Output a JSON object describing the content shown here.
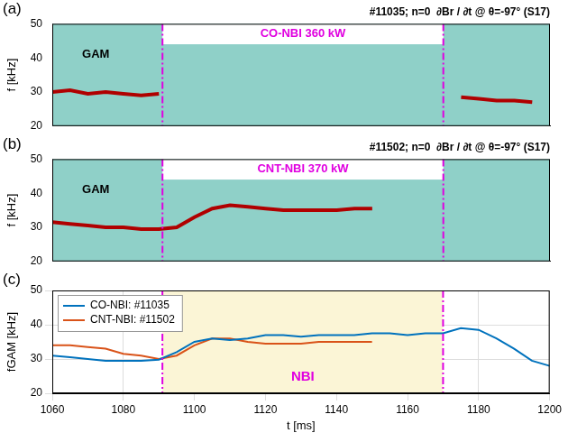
{
  "chart_data": [
    {
      "type": "line",
      "panel": "(a)",
      "title": "#11035; n=0  ∂Br / ∂t @ θ=-97° (S17)",
      "y_label": "f [kHz]",
      "band_label": "GAM",
      "nbi_label": "CO-NBI 360 kW",
      "vlines": [
        1091,
        1170
      ],
      "x": [
        1060,
        1065,
        1070,
        1075,
        1080,
        1085,
        1090,
        1095,
        1100,
        1105,
        1110,
        1115,
        1120,
        1125,
        1130,
        1135,
        1140,
        1145,
        1150,
        1155,
        1160,
        1165,
        1170,
        1175,
        1180,
        1185,
        1190,
        1195,
        1200
      ],
      "values": [
        30,
        30.5,
        29.5,
        30,
        29.5,
        29,
        29.5,
        null,
        null,
        null,
        null,
        null,
        null,
        null,
        null,
        null,
        null,
        null,
        null,
        null,
        null,
        null,
        null,
        28.5,
        28,
        27.5,
        27.5,
        27,
        null
      ],
      "color": "#b00000",
      "xlim": [
        1060,
        1200
      ],
      "ylim": [
        20,
        50
      ],
      "yticks": [
        20,
        30,
        40,
        50
      ],
      "grid": false,
      "tick_labels": "y"
    },
    {
      "type": "line",
      "panel": "(b)",
      "title": "#11502; n=0  ∂Br / ∂t @ θ=-97° (S17)",
      "y_label": "f [kHz]",
      "band_label": "GAM",
      "nbi_label": "CNT-NBI 370 kW",
      "vlines": [
        1091,
        1170
      ],
      "x": [
        1060,
        1065,
        1070,
        1075,
        1080,
        1085,
        1090,
        1095,
        1100,
        1105,
        1110,
        1115,
        1120,
        1125,
        1130,
        1135,
        1140,
        1145,
        1150,
        1155,
        1160,
        1165,
        1170,
        1175,
        1180,
        1185,
        1190,
        1195,
        1200
      ],
      "values": [
        31.5,
        31,
        30.5,
        30,
        30,
        29.5,
        29.5,
        30,
        33,
        35.5,
        36.5,
        36,
        35.5,
        35,
        35,
        35,
        35,
        35.5,
        35.5,
        null,
        null,
        null,
        null,
        null,
        null,
        null,
        null,
        null,
        null
      ],
      "color": "#b00000",
      "xlim": [
        1060,
        1200
      ],
      "ylim": [
        20,
        50
      ],
      "yticks": [
        20,
        30,
        40,
        50
      ],
      "grid": false,
      "tick_labels": "y"
    },
    {
      "type": "line",
      "panel": "(c)",
      "x_label": "t [ms]",
      "y_label": "fGAM [kHz]",
      "shade_label": "NBI",
      "vlines": [
        1091,
        1170
      ],
      "x": [
        1060,
        1065,
        1070,
        1075,
        1080,
        1085,
        1090,
        1095,
        1100,
        1105,
        1110,
        1115,
        1120,
        1125,
        1130,
        1135,
        1140,
        1145,
        1150,
        1155,
        1160,
        1165,
        1170,
        1175,
        1180,
        1185,
        1190,
        1195,
        1200
      ],
      "series": [
        {
          "name": "CO-NBI: #11035",
          "color": "#0072bd",
          "values": [
            31,
            30.5,
            30,
            29.5,
            29.5,
            29.5,
            29.8,
            32,
            35,
            36,
            35.5,
            36,
            37,
            37,
            36.5,
            37,
            37,
            37,
            37.5,
            37.5,
            37,
            37.5,
            37.5,
            39,
            38.5,
            36,
            33,
            29.5,
            28
          ]
        },
        {
          "name": "CNT-NBI: #11502",
          "color": "#d95319",
          "values": [
            34,
            34,
            33.5,
            33,
            31.5,
            31,
            30,
            31,
            34,
            36,
            36,
            35,
            34.5,
            34.5,
            34.5,
            35,
            35,
            35,
            35,
            null,
            null,
            null,
            null,
            null,
            null,
            null,
            null,
            null,
            null
          ]
        }
      ],
      "xlim": [
        1060,
        1200
      ],
      "xticks": [
        1060,
        1080,
        1100,
        1120,
        1140,
        1160,
        1180,
        1200
      ],
      "ylim": [
        20,
        50
      ],
      "yticks": [
        20,
        30,
        40,
        50
      ],
      "grid": true,
      "legend": "upper left"
    }
  ]
}
